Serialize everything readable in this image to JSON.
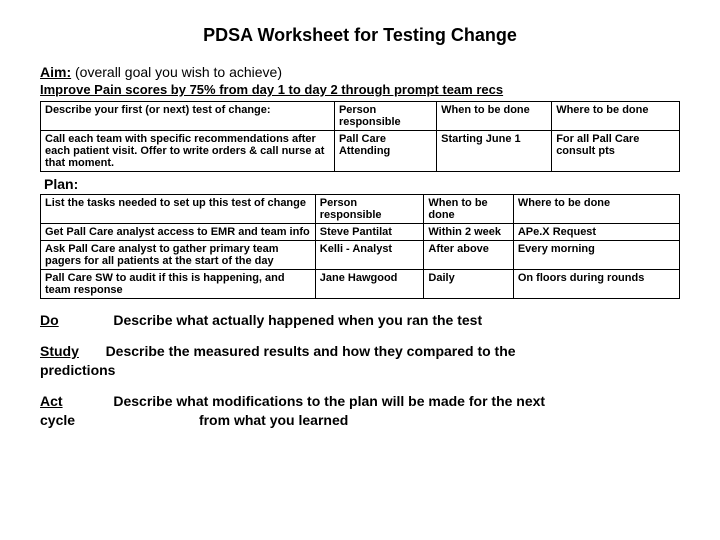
{
  "title": "PDSA Worksheet for Testing Change",
  "aim_label": "Aim:",
  "aim_text": " (overall goal you wish to achieve)",
  "improve": "Improve Pain scores by 75% from day 1 to day 2 through prompt team recs",
  "table1": {
    "h1": "Describe your first (or next) test of change:",
    "h2": "Person responsible",
    "h3": "When to be done",
    "h4": "Where to be done",
    "r1c1": "Call each team with specific recommendations after each patient visit. Offer to write orders & call nurse at that moment.",
    "r1c2": "Pall Care Attending",
    "r1c3": "Starting June 1",
    "r1c4": "For all Pall Care consult pts"
  },
  "plan_label": "Plan:",
  "table2": {
    "h1": "List the tasks needed to set up this test of change",
    "h2": "Person responsible",
    "h3": "When to be done",
    "h4": "Where to be done",
    "r1c1": "Get Pall Care analyst access to EMR and team info",
    "r1c2": "Steve Pantilat",
    "r1c3": "Within 2 week",
    "r1c4": "APe.X Request",
    "r2c1": "Ask Pall Care analyst to gather primary team pagers for all patients at the start of the day",
    "r2c2": "Kelli - Analyst",
    "r2c3": "After above",
    "r2c4": "Every morning",
    "r3c1": "Pall Care SW to audit if this is happening, and team response",
    "r3c2": "Jane Hawgood",
    "r3c3": "Daily",
    "r3c4": "On floors during rounds"
  },
  "do_label": "Do",
  "do_text": "Describe what actually happened when you ran the test",
  "study_label": "Study",
  "study_text": "Describe the measured results and how they compared to the",
  "study_text2": "predictions",
  "act_label": "Act",
  "act_text": "Describe what modifications to the plan will be made for the next",
  "act_label2": "cycle",
  "act_text2": "from what you learned"
}
